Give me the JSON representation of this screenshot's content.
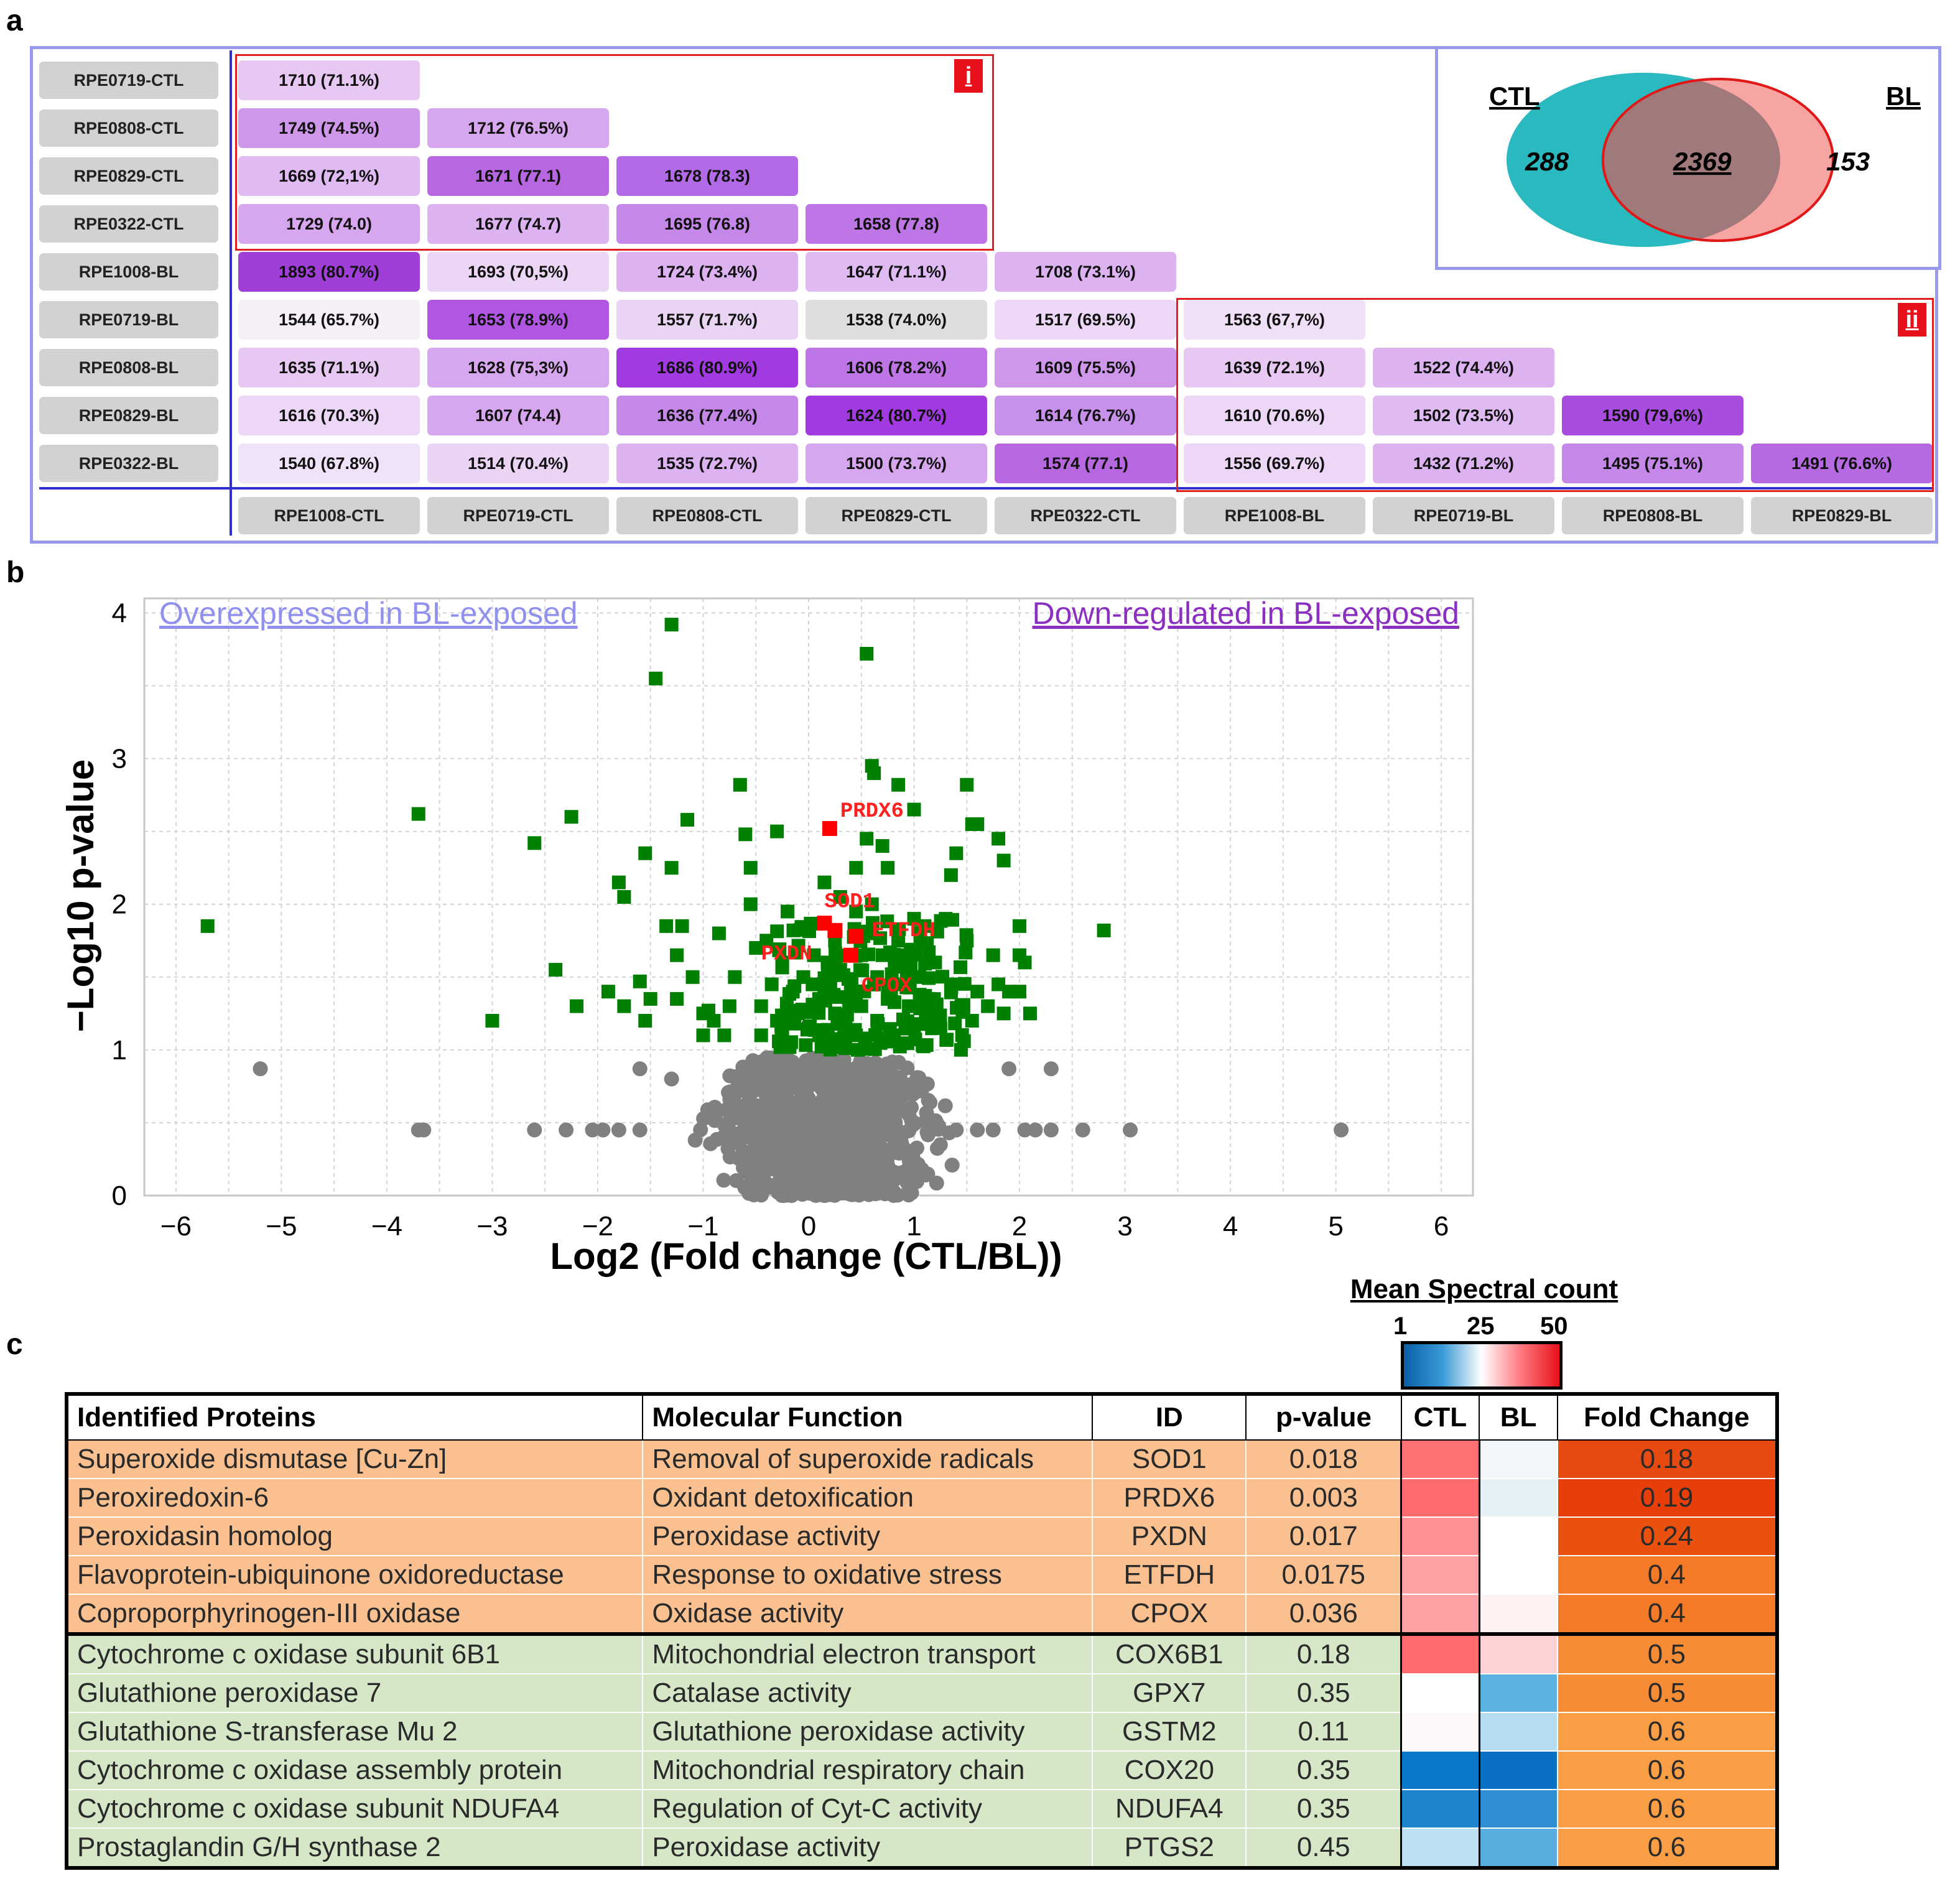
{
  "panels": {
    "a": "a",
    "b": "b",
    "c": "c"
  },
  "panel_a": {
    "row_labels": [
      "RPE0719-CTL",
      "RPE0808-CTL",
      "RPE0829-CTL",
      "RPE0322-CTL",
      "RPE1008-BL",
      "RPE0719-BL",
      "RPE0808-BL",
      "RPE0829-BL",
      "RPE0322-BL"
    ],
    "col_labels": [
      "RPE1008-CTL",
      "RPE0719-CTL",
      "RPE0808-CTL",
      "RPE0829-CTL",
      "RPE0322-CTL",
      "RPE1008-BL",
      "RPE0719-BL",
      "RPE0808-BL",
      "RPE0829-BL"
    ],
    "cells": [
      [
        "1710 (71.1%)"
      ],
      [
        "1749 (74.5%)",
        "1712 (76.5%)"
      ],
      [
        "1669 (72,1%)",
        "1671 (77.1)",
        "1678 (78.3)"
      ],
      [
        "1729 (74.0)",
        "1677 (74.7)",
        "1695 (76.8)",
        "1658 (77.8)"
      ],
      [
        "1893 (80.7%)",
        "1693 (70,5%)",
        "1724 (73.4%)",
        "1647 (71.1%)",
        "1708 (73.1%)"
      ],
      [
        "1544 (65.7%)",
        "1653 (78.9%)",
        "1557 (71.7%)",
        "1538 (74.0%)",
        "1517 (69.5%)",
        "1563 (67,7%)"
      ],
      [
        "1635 (71.1%)",
        "1628 (75,3%)",
        "1686 (80.9%)",
        "1606 (78.2%)",
        "1609 (75.5%)",
        "1639 (72.1%)",
        "1522 (74.4%)"
      ],
      [
        "1616 (70.3%)",
        "1607 (74.4)",
        "1636 (77.4%)",
        "1624 (80.7%)",
        "1614 (76.7%)",
        "1610 (70.6%)",
        "1502 (73.5%)",
        "1590 (79,6%)"
      ],
      [
        "1540 (67.8%)",
        "1514 (70.4%)",
        "1535 (72.7%)",
        "1500 (73.7%)",
        "1574 (77.1)",
        "1556 (69.7%)",
        "1432 (71.2%)",
        "1495 (75.1%)",
        "1491 (76.6%)"
      ]
    ],
    "cell_colors": [
      [
        "#e6c8f2"
      ],
      [
        "#cf97ea",
        "#d6a6ee"
      ],
      [
        "#e0baf2",
        "#b767e0",
        "#b36ae6"
      ],
      [
        "#d6a6ee",
        "#dcb2f0",
        "#c587e8",
        "#be76e6"
      ],
      [
        "#9f3fd8",
        "#ecd6f6",
        "#dcb2f0",
        "#e0baf2",
        "#dcb2f0"
      ],
      [
        "#f5f0f8",
        "#b056e2",
        "#ead4f4",
        "#dedede",
        "#ecd8f6",
        "#efdff7"
      ],
      [
        "#e6c8f2",
        "#d6a6ee",
        "#a13ae0",
        "#be76e6",
        "#cf97ea",
        "#e6c8f2",
        "#dcb2f0"
      ],
      [
        "#ecd8f6",
        "#d6a6ee",
        "#c587e8",
        "#a13ae0",
        "#c790ea",
        "#ecd8f6",
        "#e0baf2",
        "#a84de0"
      ],
      [
        "#f0e2f8",
        "#ead4f4",
        "#dcb2f0",
        "#d6a6ee",
        "#b767e0",
        "#ecd8f6",
        "#dcb2f0",
        "#c587e8",
        "#b56ae2"
      ]
    ],
    "box_labels": [
      "i",
      "ii"
    ],
    "venn": {
      "left_label": "CTL",
      "right_label": "BL",
      "left_only": "288",
      "shared": "2369",
      "right_only": "153",
      "left_color": "#2ab9bf",
      "right_color": "#f7a5a3",
      "overlap_color": "#a07a7a"
    }
  },
  "chart_data": {
    "type": "scatter",
    "title": "",
    "xlabel": "Log2 (Fold change (CTL/BL))",
    "ylabel": "−Log10 p-value",
    "xlim": [
      -6.3,
      6.3
    ],
    "ylim": [
      0,
      4.1
    ],
    "xticks": [
      "−6",
      "−5",
      "−4",
      "−3",
      "−2",
      "−1",
      "0",
      "1",
      "2",
      "3",
      "4",
      "5",
      "6"
    ],
    "yticks": [
      "0",
      "1",
      "2",
      "3",
      "4"
    ],
    "grid": true,
    "annotations": [
      {
        "text": "Overexpressed in BL-exposed",
        "color": "#9090ee"
      },
      {
        "text": "Down-regulated in BL-exposed",
        "color": "#8a2fc0"
      }
    ],
    "series": [
      {
        "color": "#008000",
        "points": [
          [
            -5.7,
            1.85
          ],
          [
            -3.7,
            2.62
          ],
          [
            -3.0,
            1.2
          ],
          [
            -2.6,
            2.42
          ],
          [
            -2.25,
            2.6
          ],
          [
            -2.4,
            1.55
          ],
          [
            -2.2,
            1.3
          ],
          [
            -1.8,
            2.15
          ],
          [
            -1.75,
            2.05
          ],
          [
            -1.9,
            1.4
          ],
          [
            -1.75,
            1.3
          ],
          [
            -1.6,
            1.47
          ],
          [
            -1.55,
            1.2
          ],
          [
            -1.5,
            1.35
          ],
          [
            -1.55,
            2.35
          ],
          [
            -1.45,
            3.55
          ],
          [
            -1.35,
            1.85
          ],
          [
            -1.3,
            3.92
          ],
          [
            -1.3,
            2.25
          ],
          [
            -1.25,
            1.65
          ],
          [
            -1.25,
            1.35
          ],
          [
            -1.2,
            1.85
          ],
          [
            -1.15,
            2.58
          ],
          [
            -1.1,
            1.5
          ],
          [
            -1.0,
            1.25
          ],
          [
            -1.0,
            1.1
          ],
          [
            -0.95,
            1.27
          ],
          [
            -0.9,
            1.2
          ],
          [
            -0.85,
            1.8
          ],
          [
            -0.8,
            1.1
          ],
          [
            -0.75,
            1.3
          ],
          [
            -0.7,
            1.5
          ],
          [
            -0.65,
            2.82
          ],
          [
            -0.6,
            2.48
          ],
          [
            -0.55,
            2.25
          ],
          [
            -0.55,
            2.0
          ],
          [
            -0.5,
            1.7
          ],
          [
            -0.45,
            1.3
          ],
          [
            -0.45,
            1.1
          ],
          [
            -0.4,
            1.75
          ],
          [
            -0.35,
            1.45
          ],
          [
            -0.3,
            2.5
          ],
          [
            -0.3,
            1.2
          ],
          [
            -0.25,
            1.6
          ],
          [
            -0.25,
            1.1
          ],
          [
            -0.2,
            1.95
          ],
          [
            -0.15,
            1.4
          ],
          [
            -0.1,
            1.25
          ],
          [
            -0.05,
            1.5
          ],
          [
            0.0,
            1.15
          ],
          [
            0.05,
            1.65
          ],
          [
            0.1,
            1.35
          ],
          [
            0.1,
            1.1
          ],
          [
            0.15,
            2.15
          ],
          [
            0.2,
            1.45
          ],
          [
            0.25,
            1.75
          ],
          [
            0.25,
            1.25
          ],
          [
            0.3,
            2.05
          ],
          [
            0.3,
            1.55
          ],
          [
            0.35,
            1.15
          ],
          [
            0.4,
            1.4
          ],
          [
            0.45,
            2.25
          ],
          [
            0.45,
            1.95
          ],
          [
            0.45,
            1.1
          ],
          [
            0.5,
            1.65
          ],
          [
            0.5,
            1.3
          ],
          [
            0.55,
            3.72
          ],
          [
            0.55,
            2.45
          ],
          [
            0.6,
            2.95
          ],
          [
            0.6,
            2.0
          ],
          [
            0.6,
            1.8
          ],
          [
            0.62,
            2.9
          ],
          [
            0.65,
            1.5
          ],
          [
            0.65,
            1.2
          ],
          [
            0.7,
            2.4
          ],
          [
            0.7,
            1.65
          ],
          [
            0.75,
            2.25
          ],
          [
            0.75,
            1.35
          ],
          [
            0.8,
            1.45
          ],
          [
            0.8,
            1.1
          ],
          [
            0.85,
            2.82
          ],
          [
            0.85,
            1.75
          ],
          [
            0.9,
            1.6
          ],
          [
            0.95,
            1.3
          ],
          [
            1.0,
            2.65
          ],
          [
            1.0,
            1.9
          ],
          [
            1.0,
            1.15
          ],
          [
            1.05,
            1.5
          ],
          [
            1.1,
            1.85
          ],
          [
            1.15,
            1.35
          ],
          [
            1.2,
            1.6
          ],
          [
            1.25,
            1.15
          ],
          [
            1.3,
            1.9
          ],
          [
            1.35,
            2.2
          ],
          [
            1.35,
            1.45
          ],
          [
            1.4,
            2.35
          ],
          [
            1.45,
            1.3
          ],
          [
            1.5,
            2.82
          ],
          [
            1.5,
            1.75
          ],
          [
            1.55,
            2.55
          ],
          [
            1.55,
            1.2
          ],
          [
            1.6,
            2.55
          ],
          [
            1.6,
            1.4
          ],
          [
            1.7,
            1.3
          ],
          [
            1.75,
            1.65
          ],
          [
            1.8,
            2.45
          ],
          [
            1.8,
            1.45
          ],
          [
            1.85,
            2.3
          ],
          [
            1.85,
            1.25
          ],
          [
            1.9,
            1.4
          ],
          [
            2.0,
            1.85
          ],
          [
            2.0,
            1.65
          ],
          [
            2.0,
            1.4
          ],
          [
            2.05,
            1.6
          ],
          [
            2.1,
            1.25
          ],
          [
            2.8,
            1.82
          ]
        ]
      },
      {
        "color": "#ff0000",
        "points": [
          [
            0.2,
            2.52
          ],
          [
            0.15,
            1.87
          ],
          [
            0.25,
            1.82
          ],
          [
            0.45,
            1.78
          ],
          [
            0.4,
            1.65
          ]
        ]
      },
      {
        "color": "#808080",
        "summary": "dense cloud of non-significant proteins between about x −2.5 and 2.5, y 0 to 1",
        "points": [
          [
            -5.2,
            0.87
          ],
          [
            -3.7,
            0.45
          ],
          [
            -3.65,
            0.45
          ],
          [
            -2.6,
            0.45
          ],
          [
            -2.3,
            0.45
          ],
          [
            -2.05,
            0.45
          ],
          [
            -1.95,
            0.45
          ],
          [
            -1.8,
            0.45
          ],
          [
            -1.6,
            0.45
          ],
          [
            1.4,
            0.45
          ],
          [
            1.6,
            0.45
          ],
          [
            1.75,
            0.45
          ],
          [
            2.05,
            0.45
          ],
          [
            2.15,
            0.45
          ],
          [
            2.3,
            0.45
          ],
          [
            2.6,
            0.45
          ],
          [
            3.05,
            0.45
          ],
          [
            5.05,
            0.45
          ],
          [
            2.3,
            0.87
          ],
          [
            1.9,
            0.87
          ],
          [
            -1.6,
            0.87
          ],
          [
            -1.3,
            0.8
          ]
        ]
      }
    ],
    "point_labels": [
      {
        "text": "PRDX6",
        "x": 0.3,
        "y": 2.6
      },
      {
        "text": "SOD1",
        "x": 0.15,
        "y": 1.98
      },
      {
        "text": "ETFDH",
        "x": 0.6,
        "y": 1.78
      },
      {
        "text": "PXDN",
        "x": -0.45,
        "y": 1.62
      },
      {
        "text": "CPOX",
        "x": 0.5,
        "y": 1.4
      }
    ]
  },
  "panel_c": {
    "legend_title": "Mean Spectral count",
    "legend_ticks": [
      "1",
      "25",
      "50"
    ],
    "headers": [
      "Identified Proteins",
      "Molecular Function",
      "ID",
      "p-value",
      "CTL",
      "BL",
      "Fold Change"
    ],
    "rows": [
      {
        "protein": "Superoxide dismutase [Cu-Zn]",
        "function": "Removal of superoxide radicals",
        "id": "SOD1",
        "p": "0.018",
        "ctl": "#ff7072",
        "bl": "#f0f6fa",
        "fc": "0.18",
        "fc_color": "#e64a10",
        "group": "#fac090"
      },
      {
        "protein": "Peroxiredoxin-6",
        "function": "Oxidant detoxification",
        "id": "PRDX6",
        "p": "0.003",
        "ctl": "#ff6b6e",
        "bl": "#e6f1f6",
        "fc": "0.19",
        "fc_color": "#e83f0a",
        "group": "#fac090"
      },
      {
        "protein": "Peroxidasin homolog",
        "function": "Peroxidase activity",
        "id": "PXDN",
        "p": "0.017",
        "ctl": "#ff8f92",
        "bl": "#ffffff",
        "fc": "0.24",
        "fc_color": "#ea510f",
        "group": "#fac090"
      },
      {
        "protein": "Flavoprotein-ubiquinone oxidoreductase",
        "function": "Response to oxidative stress",
        "id": "ETFDH",
        "p": "0.0175",
        "ctl": "#ffa0a2",
        "bl": "#ffffff",
        "fc": "0.4",
        "fc_color": "#f47a28",
        "group": "#fac090"
      },
      {
        "protein": "Coproporphyrinogen-III oxidase",
        "function": "Oxidase activity",
        "id": "CPOX",
        "p": "0.036",
        "ctl": "#ffa2a5",
        "bl": "#fff2f2",
        "fc": "0.4",
        "fc_color": "#f47a28",
        "group": "#fac090"
      },
      {
        "protein": "Cytochrome c oxidase subunit 6B1",
        "function": "Mitochondrial electron transport",
        "id": "COX6B1",
        "p": "0.18",
        "ctl": "#ff6a6c",
        "bl": "#ffd2d5",
        "fc": "0.5",
        "fc_color": "#f78c36",
        "group": "#d6e7c8"
      },
      {
        "protein": "Glutathione peroxidase 7",
        "function": "Catalase activity",
        "id": "GPX7",
        "p": "0.35",
        "ctl": "#ffffff",
        "bl": "#5bb1df",
        "fc": "0.5",
        "fc_color": "#f78c36",
        "group": "#d6e7c8"
      },
      {
        "protein": "Glutathione S-transferase Mu 2",
        "function": "Glutathione peroxidase activity",
        "id": "GSTM2",
        "p": "0.11",
        "ctl": "#fff8f8",
        "bl": "#b5dcf0",
        "fc": "0.6",
        "fc_color": "#fa9e46",
        "group": "#d6e7c8"
      },
      {
        "protein": "Cytochrome c oxidase assembly protein",
        "function": "Mitochondrial respiratory chain",
        "id": "COX20",
        "p": "0.35",
        "ctl": "#0a78c8",
        "bl": "#0a70c4",
        "fc": "0.6",
        "fc_color": "#fa9e46",
        "group": "#d6e7c8"
      },
      {
        "protein": "Cytochrome c oxidase subunit NDUFA4",
        "function": "Regulation of Cyt-C activity",
        "id": "NDUFA4",
        "p": "0.35",
        "ctl": "#1d86cf",
        "bl": "#2f8fd4",
        "fc": "0.6",
        "fc_color": "#fa9e46",
        "group": "#d6e7c8"
      },
      {
        "protein": "Prostaglandin G/H synthase 2",
        "function": "Peroxidase activity",
        "id": "PTGS2",
        "p": "0.45",
        "ctl": "#bde0f2",
        "bl": "#5aaedf",
        "fc": "0.6",
        "fc_color": "#fa9e46",
        "group": "#d6e7c8"
      }
    ]
  }
}
